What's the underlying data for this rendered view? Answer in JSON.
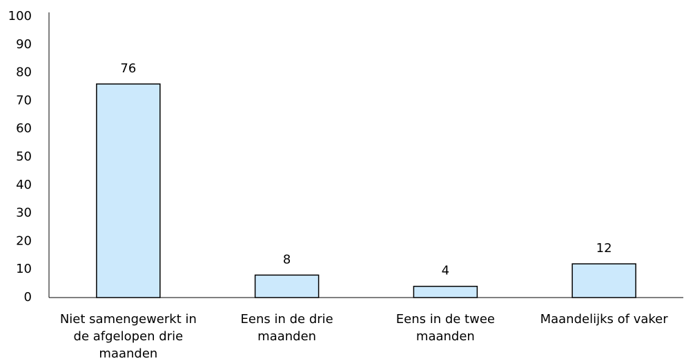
{
  "chart_data": {
    "type": "bar",
    "categories": [
      "Niet samengewerkt in de afgelopen drie maanden",
      "Eens in de drie maanden",
      "Eens in de twee maanden",
      "Maandelijks of vaker"
    ],
    "values": [
      76,
      8,
      4,
      12
    ],
    "color": "#cce9fc",
    "ylim": [
      0,
      100
    ],
    "yticks": [
      0,
      10,
      20,
      30,
      40,
      50,
      60,
      70,
      80,
      90,
      100
    ],
    "grid": false
  }
}
